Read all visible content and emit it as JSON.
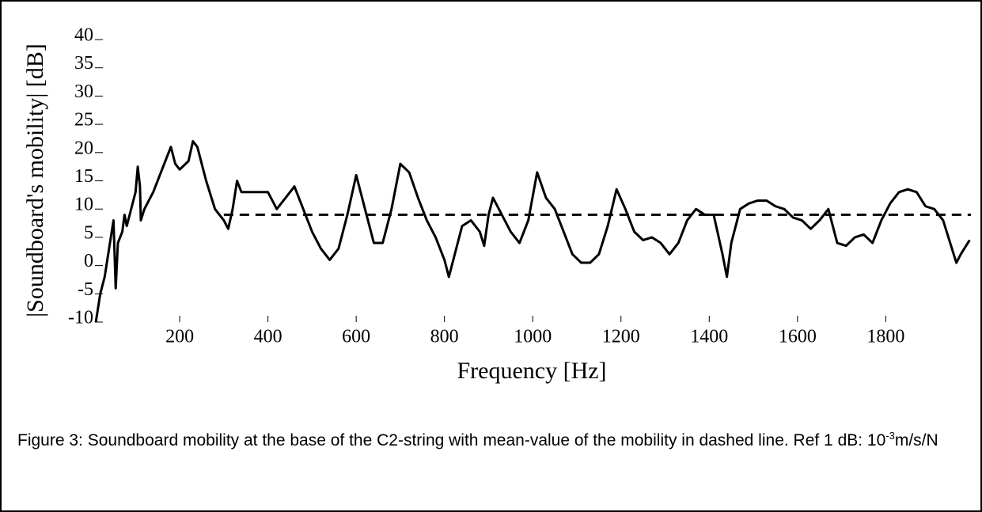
{
  "chart_data": {
    "type": "line",
    "xlabel": "Frequency [Hz]",
    "ylabel": "|Soundboard's mobility| [dB]",
    "xlim": [
      8,
      1993
    ],
    "ylim": [
      -10,
      40
    ],
    "xticks": [
      200,
      400,
      600,
      800,
      1000,
      1200,
      1400,
      1600,
      1800
    ],
    "yticks": [
      -10,
      -5,
      0,
      5,
      10,
      15,
      20,
      25,
      30,
      35,
      40
    ],
    "series": [
      {
        "color": "#000000",
        "dash": false,
        "x": [
          10,
          20,
          30,
          40,
          50,
          55,
          60,
          70,
          75,
          80,
          90,
          100,
          105,
          110,
          112,
          120,
          140,
          160,
          180,
          190,
          200,
          220,
          230,
          240,
          260,
          280,
          300,
          310,
          320,
          330,
          340,
          360,
          380,
          400,
          420,
          440,
          460,
          480,
          500,
          520,
          540,
          560,
          580,
          600,
          620,
          640,
          660,
          680,
          700,
          720,
          740,
          760,
          780,
          800,
          810,
          820,
          840,
          860,
          880,
          890,
          900,
          910,
          930,
          950,
          970,
          990,
          1010,
          1030,
          1050,
          1070,
          1090,
          1110,
          1130,
          1150,
          1170,
          1190,
          1210,
          1230,
          1250,
          1270,
          1290,
          1310,
          1330,
          1350,
          1370,
          1390,
          1410,
          1430,
          1440,
          1450,
          1470,
          1490,
          1510,
          1530,
          1550,
          1570,
          1590,
          1610,
          1630,
          1650,
          1670,
          1690,
          1710,
          1730,
          1750,
          1770,
          1790,
          1810,
          1830,
          1850,
          1870,
          1890,
          1910,
          1930,
          1950,
          1960,
          1970,
          1990
        ],
        "values": [
          -10,
          -5,
          -2,
          3,
          8,
          -4,
          4,
          6,
          9,
          7,
          10,
          13,
          17.5,
          14,
          8,
          10,
          13,
          17,
          21,
          18,
          17,
          18.5,
          22,
          21,
          15,
          10,
          8,
          6.5,
          10,
          15,
          13,
          13,
          13,
          13,
          10,
          12,
          14,
          10,
          6,
          3,
          1,
          3,
          9,
          16,
          10,
          4,
          4,
          10,
          18,
          16.5,
          12,
          8,
          5,
          1,
          -2,
          1,
          7,
          8,
          6,
          3.5,
          9,
          12,
          9,
          6,
          4,
          8,
          16.5,
          12,
          10,
          6,
          2,
          0.5,
          0.5,
          2,
          7,
          13.5,
          10,
          6,
          4.5,
          5,
          4,
          2,
          4,
          8,
          10,
          9,
          9,
          2,
          -2,
          4,
          10,
          11,
          11.5,
          11.5,
          10.5,
          10,
          8.5,
          8,
          6.5,
          8,
          10,
          4,
          3.5,
          5,
          5.5,
          4,
          8,
          11,
          13,
          13.5,
          13,
          10.5,
          10,
          8,
          3,
          0.5,
          2,
          4.5
        ]
      },
      {
        "color": "#000000",
        "dash": true,
        "x": [
          300,
          1993
        ],
        "values": [
          9,
          9
        ]
      }
    ]
  },
  "caption": {
    "text": "Figure 3: Soundboard mobility at the base of the C2-string with mean-value of the mobility in dashed line. Ref 1 dB: 10",
    "superscript": "-3",
    "suffix": "m/s/N"
  }
}
